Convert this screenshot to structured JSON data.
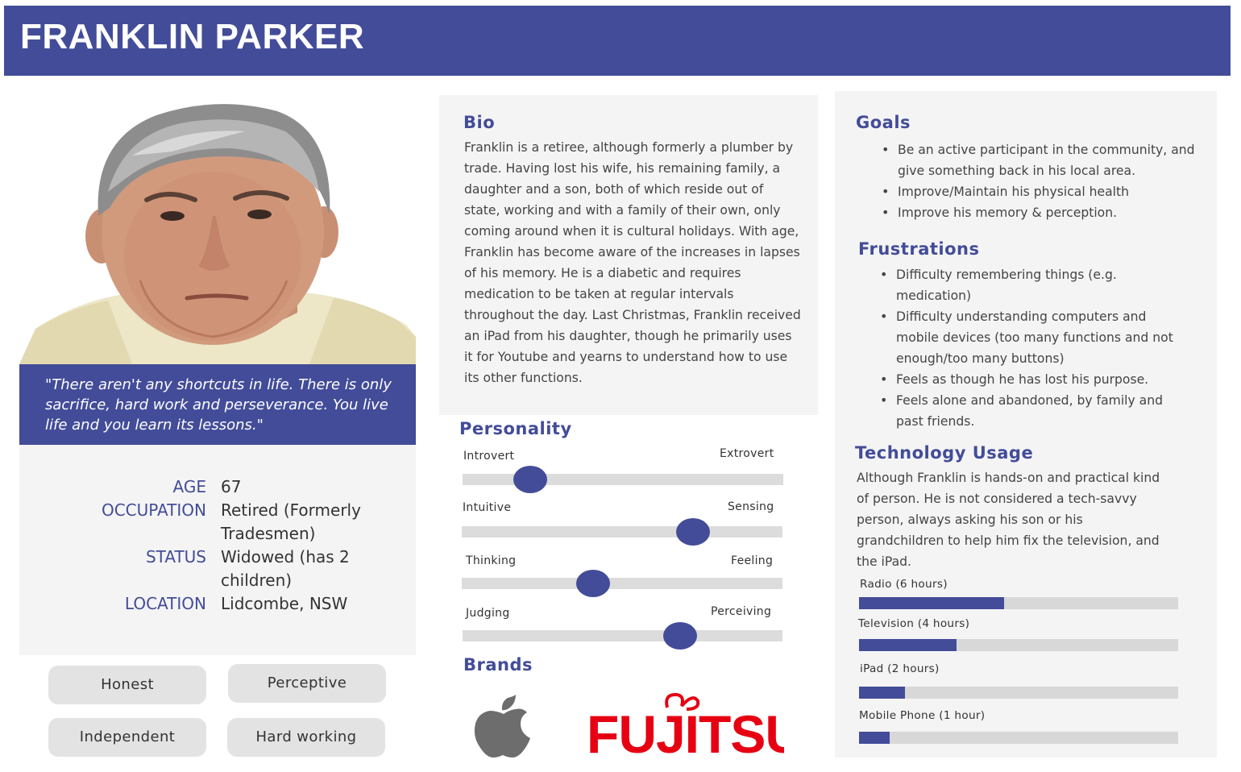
{
  "header": {
    "name": "FRANKLIN PARKER"
  },
  "profile": {
    "quote": "\"There aren't any shortcuts in life. There is only sacrifice, hard work and perseverance. You live life and you learn its lessons.\"",
    "info": [
      {
        "label": "AGE",
        "value": "67"
      },
      {
        "label": "OCCUPATION",
        "value": "Retired (Formerly Tradesmen)"
      },
      {
        "label": "STATUS",
        "value": "Widowed (has 2 children)"
      },
      {
        "label": "LOCATION",
        "value": "Lidcombe, NSW"
      }
    ],
    "traits": [
      "Honest",
      "Perceptive",
      "Independent",
      "Hard working"
    ]
  },
  "bio": {
    "title": "Bio",
    "text": "Franklin is a retiree, although formerly a plumber by trade. Having lost his wife, his remaining family, a daughter and a son, both of which reside out of state, working and with a family of their own, only coming around when it is cultural holidays. With age, Franklin has become aware of the increases in lapses of his memory. He is a diabetic and requires medication to be taken at regular intervals throughout the day.  Last Christmas, Franklin received an iPad from his daughter, though he primarily uses it for Youtube and yearns to understand how to use its other functions."
  },
  "personality": {
    "title": "Personality",
    "traits": [
      {
        "left": "Introvert",
        "right": "Extrovert",
        "level": 0.21
      },
      {
        "left": "Intuitive",
        "right": "Sensing",
        "level": 0.72
      },
      {
        "left": "Thinking",
        "right": "Feeling",
        "level": 0.41
      },
      {
        "left": "Judging",
        "right": "Perceiving",
        "level": 0.68
      }
    ]
  },
  "brands": {
    "title": "Brands",
    "items": [
      {
        "name": "apple-logo"
      },
      {
        "name": "FUJITSU",
        "color": "#e60012"
      }
    ]
  },
  "goals": {
    "title": "Goals",
    "items": [
      "Be an active participant in the community, and give something back in his local area.",
      "Improve/Maintain his physical health",
      "Improve his memory & perception."
    ]
  },
  "frustrations": {
    "title": "Frustrations",
    "items": [
      "Difficulty remembering things (e.g. medication)",
      "Difficulty understanding computers and mobile devices (too many functions and not enough/too many buttons)",
      "Feels as though he has lost his purpose.",
      "Feels alone and abandoned, by family and past friends."
    ]
  },
  "technology": {
    "title": "Technology Usage",
    "text": "Although Franklin is hands-on and practical kind of person. He is not considered a tech-savvy person, always asking his son or his grandchildren to help him fix the television, and the iPad.",
    "usage": [
      {
        "label": "Radio (6 hours)",
        "level": 0.455
      },
      {
        "label": "Television (4 hours)",
        "level": 0.305
      },
      {
        "label": "iPad (2 hours)",
        "level": 0.145
      },
      {
        "label": "Mobile Phone (1 hour)",
        "level": 0.095
      }
    ]
  },
  "colors": {
    "accent": "#434c98",
    "panel": "#f4f4f4",
    "track": "#d8d8d8"
  }
}
